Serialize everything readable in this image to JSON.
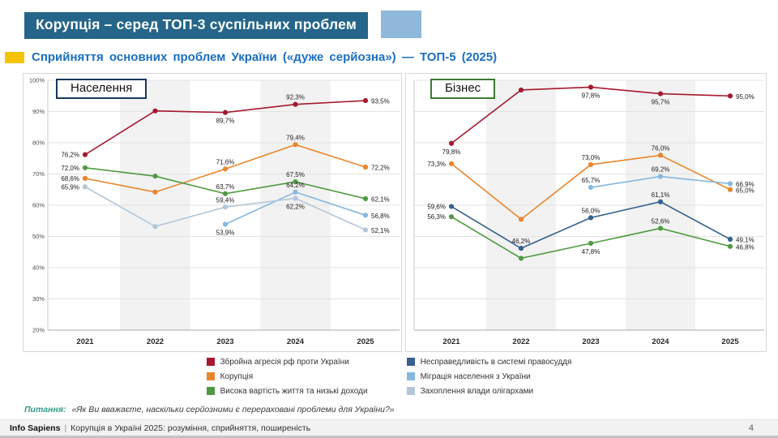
{
  "slide": {
    "title": "Корупція – серед ТОП-3 суспільних проблем",
    "subtitle": "Сприйняття основних проблем України («дуже серйозна») — ТОП-5 (2025)",
    "question_label": "Питання:",
    "question_text": "«Як Ви вважаєте, наскільки серйозними є перераховані проблеми для України?»",
    "footer": {
      "brand": "Info Sapiens",
      "separator": "|",
      "text": "Корупція в Україні 2025: розуміння, сприйняття, поширеність",
      "page_number": "4"
    }
  },
  "colors": {
    "title_bar_bg": "#25658A",
    "title_accent": "#8FB8DA",
    "subtitle_text": "#1B6FBF",
    "yellow_accent": "#F5C400",
    "question_label": "#2E9C89"
  },
  "chart_data": [
    {
      "type": "line",
      "title": "Населення",
      "title_border": "#17375E",
      "x": [
        "2021",
        "2022",
        "2023",
        "2024",
        "2025"
      ],
      "ylim": [
        20,
        100
      ],
      "ytick_labels": [
        "20%",
        "30%",
        "40%",
        "50%",
        "60%",
        "70%",
        "80%",
        "90%",
        "100%"
      ],
      "grid": true,
      "shaded_columns": [
        1,
        3
      ],
      "series": [
        {
          "name": "Збройна агресія рф проти України",
          "color": "#A6192E",
          "values": [
            76.2,
            90.2,
            89.7,
            92.3,
            93.5
          ],
          "labels": [
            "76,2%",
            null,
            "89,7%",
            "92,3%",
            "93,5%"
          ],
          "label_pos": [
            "l",
            null,
            "b",
            "a",
            "r"
          ]
        },
        {
          "name": "Корупція",
          "color": "#E8862D",
          "values": [
            68.6,
            64.2,
            71.6,
            79.4,
            72.2
          ],
          "labels": [
            "68,6%",
            null,
            "71,6%",
            "79,4%",
            "72,2%"
          ],
          "label_pos": [
            "l",
            null,
            "a",
            "a",
            "r"
          ]
        },
        {
          "name": "Висока вартість життя та низькі доходи",
          "color": "#4F9A41",
          "values": [
            72.0,
            69.3,
            63.7,
            67.5,
            62.1
          ],
          "labels": [
            "72,0%",
            null,
            "63,7%",
            "67,5%",
            "62,1%"
          ],
          "label_pos": [
            "l",
            null,
            "a",
            "a",
            "r"
          ]
        },
        {
          "name": "Міграція населення з України",
          "color": "#85B8E0",
          "values": [
            null,
            null,
            53.9,
            64.2,
            56.8
          ],
          "labels": [
            null,
            null,
            "53,9%",
            "64,2%",
            "56,8%"
          ],
          "label_pos": [
            null,
            null,
            "b",
            "a",
            "r"
          ]
        },
        {
          "name": "Захоплення влади олігархами",
          "color": "#B3C6D9",
          "values": [
            65.9,
            53.2,
            59.4,
            62.2,
            52.1
          ],
          "labels": [
            "65,9%",
            null,
            "59,4%",
            "62,2%",
            "52,1%"
          ],
          "label_pos": [
            "l",
            null,
            "a",
            "b",
            "r"
          ]
        }
      ]
    },
    {
      "type": "line",
      "title": "Бізнес",
      "title_border": "#3F7A34",
      "x": [
        "2021",
        "2022",
        "2023",
        "2024",
        "2025"
      ],
      "ylim": [
        20,
        100
      ],
      "ytick_labels": [
        "20%",
        "30%",
        "40%",
        "50%",
        "60%",
        "70%",
        "80%",
        "90%",
        "100%"
      ],
      "grid": true,
      "shaded_columns": [
        1,
        3
      ],
      "series": [
        {
          "name": "Збройна агресія рф проти України",
          "color": "#A6192E",
          "values": [
            79.8,
            96.9,
            97.8,
            95.7,
            95.0
          ],
          "labels": [
            "79,8%",
            null,
            "97,8%",
            "95,7%",
            "95,0%"
          ],
          "label_pos": [
            "b",
            null,
            "b",
            "b",
            "r"
          ]
        },
        {
          "name": "Корупція",
          "color": "#E8862D",
          "values": [
            73.3,
            55.5,
            73.0,
            76.0,
            65.0
          ],
          "labels": [
            "73,3%",
            null,
            "73,0%",
            "76,0%",
            "65,0%"
          ],
          "label_pos": [
            "l",
            null,
            "a",
            "a",
            "r"
          ]
        },
        {
          "name": "Несправедливість в системі правосуддя",
          "color": "#35618E",
          "values": [
            59.6,
            46.2,
            56.0,
            61.1,
            49.1
          ],
          "labels": [
            "59,6%",
            "46,2%",
            "56,0%",
            "61,1%",
            "49,1%"
          ],
          "label_pos": [
            "l",
            "a",
            "a",
            "a",
            "r"
          ]
        },
        {
          "name": "Висока вартість життя та низькі доходи",
          "color": "#4F9A41",
          "values": [
            56.3,
            43.0,
            47.8,
            52.6,
            46.8
          ],
          "labels": [
            "56,3%",
            null,
            "47,8%",
            "52,6%",
            "46,8%"
          ],
          "label_pos": [
            "l",
            null,
            "b",
            "a",
            "r"
          ]
        },
        {
          "name": "Міграція населення з України",
          "color": "#85B8E0",
          "values": [
            null,
            null,
            65.7,
            69.2,
            66.9
          ],
          "labels": [
            null,
            null,
            "65,7%",
            "69,2%",
            "66,9%"
          ],
          "label_pos": [
            null,
            null,
            "a",
            "a",
            "r"
          ]
        }
      ]
    }
  ],
  "legend": {
    "columns": [
      [
        {
          "label": "Збройна агресія рф проти України",
          "color": "#A6192E"
        },
        {
          "label": "Корупція",
          "color": "#E8862D"
        },
        {
          "label": "Висока вартість життя та низькі доходи",
          "color": "#4F9A41"
        }
      ],
      [
        {
          "label": "Несправедливість в системі правосуддя",
          "color": "#35618E"
        },
        {
          "label": "Міграція населення з України",
          "color": "#85B8E0"
        },
        {
          "label": "Захоплення влади олігархами",
          "color": "#B3C6D9"
        }
      ]
    ]
  }
}
